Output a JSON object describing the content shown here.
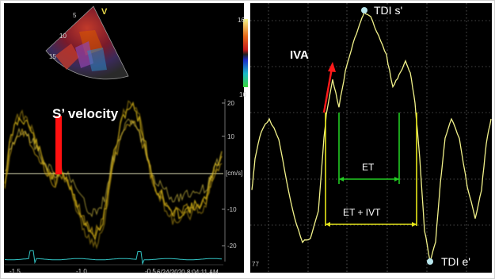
{
  "left_panel": {
    "title_annotation": "S’ velocity",
    "sector_scale_labels": [
      "5",
      "10",
      "15"
    ],
    "sector_probe_marker": "V",
    "color_bar_top_value": "16",
    "color_bar_bottom_value": "16",
    "velocity_axis": {
      "unit_label": "[cm/s]",
      "tick_labels": [
        "20",
        "10",
        "-10",
        "-20"
      ]
    },
    "time_axis": {
      "tick_labels": [
        "-1.5",
        "-1.0",
        "-0.5"
      ]
    },
    "timestamp": "6/24/2020 8:04:11 AM",
    "colors": {
      "background": "#000000",
      "doppler_trace": "#e4c21a",
      "velocity_bar": "#ff1010",
      "baseline": "#d9d9b0",
      "ecg": "#33c6c6"
    }
  },
  "right_panel": {
    "annotations": {
      "peak_label": "TDI s'",
      "trough_label": "TDI e'",
      "iva_label": "IVA",
      "et_label": "ET",
      "et_ivt_label": "ET + IVT"
    },
    "bottom_left_value": "77",
    "colors": {
      "background": "#000000",
      "trace": "#f2f28a",
      "grid": "#ffffff",
      "et_marker": "#22cc22",
      "et_ivt_marker": "#e6e61a",
      "iva_arrow": "#ff1a1a",
      "point_marker": "#b8e6ec"
    }
  }
}
